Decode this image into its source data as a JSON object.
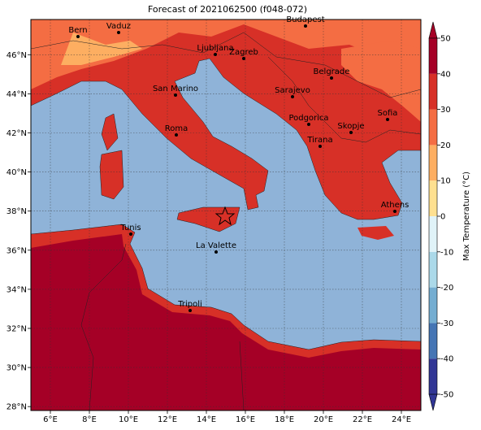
{
  "title": "Forecast of 2021062500 (f048-072)",
  "map": {
    "xlim": [
      5,
      25
    ],
    "ylim": [
      27.8,
      47.8
    ],
    "lon_ticks": [
      {
        "value": 6,
        "label": "6°E"
      },
      {
        "value": 8,
        "label": "8°E"
      },
      {
        "value": 10,
        "label": "10°E"
      },
      {
        "value": 12,
        "label": "12°E"
      },
      {
        "value": 14,
        "label": "14°E"
      },
      {
        "value": 16,
        "label": "16°E"
      },
      {
        "value": 18,
        "label": "18°E"
      },
      {
        "value": 20,
        "label": "20°E"
      },
      {
        "value": 22,
        "label": "22°E"
      },
      {
        "value": 24,
        "label": "24°E"
      }
    ],
    "lat_ticks": [
      {
        "value": 28,
        "label": "28°N"
      },
      {
        "value": 30,
        "label": "30°N"
      },
      {
        "value": 32,
        "label": "32°N"
      },
      {
        "value": 34,
        "label": "34°N"
      },
      {
        "value": 36,
        "label": "36°N"
      },
      {
        "value": 38,
        "label": "38°N"
      },
      {
        "value": 40,
        "label": "40°N"
      },
      {
        "value": 42,
        "label": "42°N"
      },
      {
        "value": 44,
        "label": "44°N"
      },
      {
        "value": 46,
        "label": "46°N"
      }
    ]
  },
  "cities": [
    "Bern",
    "Vaduz",
    "Budapest",
    "Ljubljana",
    "Zagreb",
    "Belgrade",
    "Sarajevo",
    "San Marino",
    "Podgorica",
    "Sofia",
    "Skopje",
    "Roma",
    "Tirana",
    "Athens",
    "Tunis",
    "La Valette",
    "Tripoli"
  ],
  "colorbar": {
    "label": "Max Temperature (°C)",
    "ticks": [
      -50,
      -40,
      -30,
      -20,
      -10,
      0,
      10,
      20,
      30,
      40,
      50
    ],
    "colors": [
      "#313695",
      "#4575b4",
      "#74add1",
      "#abd9e9",
      "#e0f3f8",
      "#fee090",
      "#fdae61",
      "#f46d43",
      "#d73027",
      "#a50026"
    ]
  }
}
